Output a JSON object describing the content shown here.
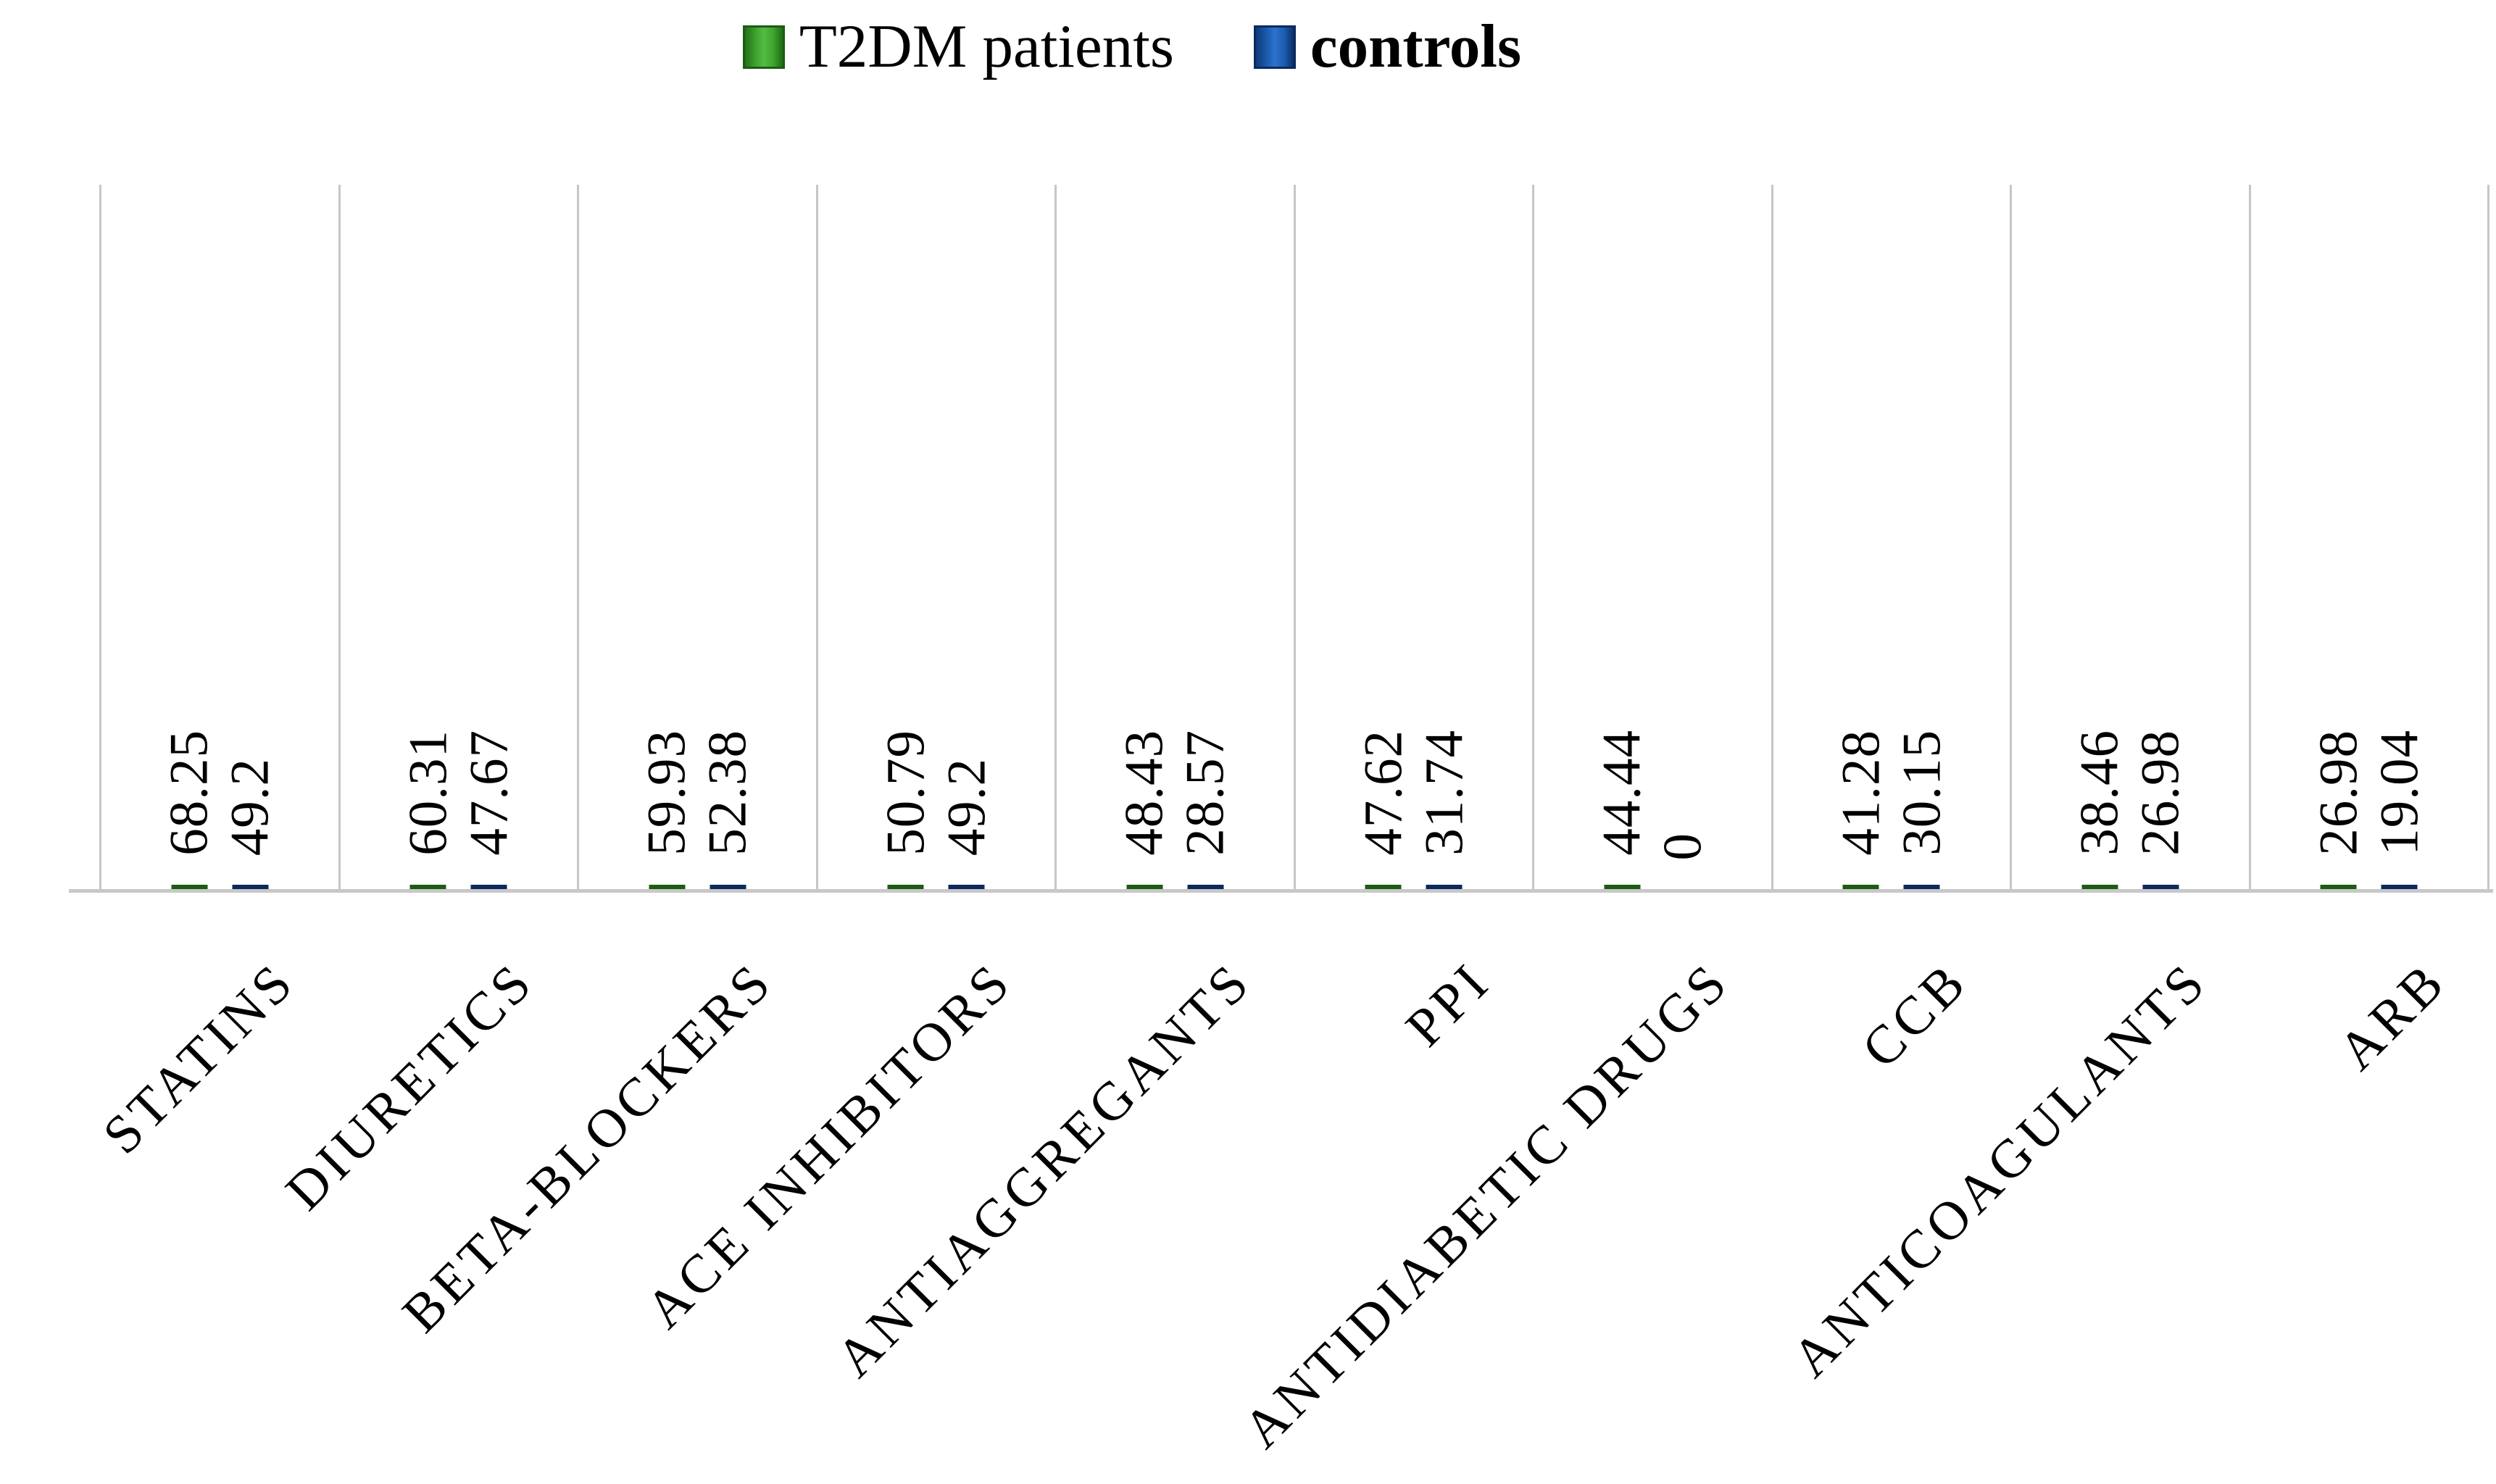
{
  "chart_data": {
    "type": "bar",
    "title": "",
    "categories": [
      "STATINS",
      "DIURETICS",
      "BETA-BLOCKERS",
      "ACE INHIBITORS",
      "ANTIAGGREGANTS",
      "PPI",
      "ANTIDIABETIC DRUGS",
      "CCB",
      "ANTICOAGULANTS",
      "ARB"
    ],
    "series": [
      {
        "name": "T2DM patients",
        "fill_color": "#3fa52f",
        "border_color": "#1c5c12",
        "values": [
          68.25,
          60.31,
          59.93,
          50.79,
          48.43,
          47.62,
          44.44,
          41.28,
          38.46,
          26.98
        ],
        "labels": [
          "68.25",
          "60.31",
          "59.93",
          "50.79",
          "48.43",
          "47.62",
          "44.44",
          "41.28",
          "38.46",
          "26.98"
        ]
      },
      {
        "name": "controls",
        "fill_color": "#1d5cb0",
        "border_color": "#0a2a5e",
        "values": [
          49.2,
          47.67,
          52.38,
          49.2,
          28.57,
          31.74,
          0,
          30.15,
          26.98,
          19.04
        ],
        "labels": [
          "49.2",
          "47.67",
          "52.38",
          "49.2",
          "28.57",
          "31.74",
          "0",
          "30.15",
          "26.98",
          "19.04"
        ]
      }
    ],
    "ylim": [
      0,
      100
    ],
    "xlabel": "",
    "ylabel": "",
    "grid": "vertical category separators only, no horizontal gridlines, no y-axis ticks",
    "legend_position": "top-center",
    "data_labels": "values rotated 90deg above each bar",
    "category_label_rotation_deg": 45
  },
  "legend": {
    "items": [
      {
        "series_index": 0,
        "label": "T2DM patients",
        "bold": false
      },
      {
        "series_index": 1,
        "label": "controls",
        "bold": true
      }
    ]
  },
  "colors": {
    "background": "#ffffff",
    "gridline": "#c6c6c6",
    "axis_line": "#c8c8c8",
    "text": "#000000",
    "series_green": "#3fa52f",
    "series_blue": "#1d5cb0"
  }
}
